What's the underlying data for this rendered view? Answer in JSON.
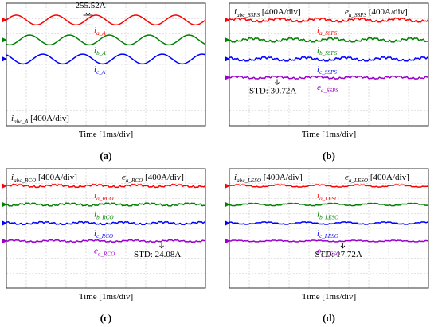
{
  "chart_data": [
    {
      "id": "a",
      "type": "line",
      "panel_label": "(a)",
      "xlabel": "Time [1ms/div]",
      "scale_label": {
        "main": "i",
        "sub": "abc_A",
        "tail": " [400A/div]"
      },
      "annotations": [
        {
          "text": "255.52A",
          "series": 0,
          "x_div": 4.1
        }
      ],
      "x_divs": 10,
      "y_divs": 8,
      "series": [
        {
          "name_main": "i",
          "name_sub": "a_A",
          "color": "#ff0000",
          "center_div": 1.1,
          "amp_div": 0.32,
          "cycles": 5.0,
          "phase": 0.0,
          "ripple": 0.0
        },
        {
          "name_main": "i",
          "name_sub": "b_A",
          "color": "#008000",
          "center_div": 2.4,
          "amp_div": 0.32,
          "cycles": 5.0,
          "phase": -2.094,
          "ripple": 0.0
        },
        {
          "name_main": "i",
          "name_sub": "c_A",
          "color": "#0000ff",
          "center_div": 3.65,
          "amp_div": 0.32,
          "cycles": 5.0,
          "phase": 2.094,
          "ripple": 0.0
        }
      ]
    },
    {
      "id": "b",
      "type": "line",
      "panel_label": "(b)",
      "xlabel": "Time [1ms/div]",
      "scale_label": {
        "main": "i",
        "sub": "abc_SSPS",
        "tail": " [400A/div]"
      },
      "scale_label_right": {
        "main": "e",
        "sub": "a_SSPS",
        "tail": " [400A/div]"
      },
      "annotations": [
        {
          "text": "STD: 30.72A",
          "series": 3,
          "x_div": 2.4
        }
      ],
      "x_divs": 10,
      "y_divs": 8,
      "series": [
        {
          "name_main": "i",
          "name_sub": "a_SSPS",
          "color": "#ff0000",
          "center_div": 1.1,
          "amp_div": 0.1,
          "cycles": 5.0,
          "phase": 0.0,
          "ripple": 0.05
        },
        {
          "name_main": "i",
          "name_sub": "b_SSPS",
          "color": "#008000",
          "center_div": 2.4,
          "amp_div": 0.1,
          "cycles": 5.0,
          "phase": -2.094,
          "ripple": 0.05
        },
        {
          "name_main": "i",
          "name_sub": "c_SSPS",
          "color": "#0000ff",
          "center_div": 3.65,
          "amp_div": 0.1,
          "cycles": 5.0,
          "phase": 2.094,
          "ripple": 0.05
        },
        {
          "name_main": "e",
          "name_sub": "a_SSPS",
          "color": "#9900cc",
          "center_div": 4.85,
          "amp_div": 0.06,
          "cycles": 5.0,
          "phase": 0.5,
          "ripple": 0.04
        }
      ]
    },
    {
      "id": "c",
      "type": "line",
      "panel_label": "(c)",
      "xlabel": "Time [1ms/div]",
      "scale_label": {
        "main": "i",
        "sub": "abc_RCO",
        "tail": " [400A/div]"
      },
      "scale_label_right": {
        "main": "e",
        "sub": "a_RCO",
        "tail": " [400A/div]"
      },
      "annotations": [
        {
          "text": "STD: 24.08A",
          "series": 3,
          "x_div": 7.8
        }
      ],
      "x_divs": 10,
      "y_divs": 8,
      "series": [
        {
          "name_main": "i",
          "name_sub": "a_RCO",
          "color": "#ff0000",
          "center_div": 1.15,
          "amp_div": 0.07,
          "cycles": 5.0,
          "phase": 0.0,
          "ripple": 0.04
        },
        {
          "name_main": "i",
          "name_sub": "b_RCO",
          "color": "#008000",
          "center_div": 2.4,
          "amp_div": 0.07,
          "cycles": 5.0,
          "phase": -2.094,
          "ripple": 0.04
        },
        {
          "name_main": "i",
          "name_sub": "c_RCO",
          "color": "#0000ff",
          "center_div": 3.65,
          "amp_div": 0.07,
          "cycles": 5.0,
          "phase": 2.094,
          "ripple": 0.04
        },
        {
          "name_main": "e",
          "name_sub": "a_RCO",
          "color": "#9900cc",
          "center_div": 4.85,
          "amp_div": 0.05,
          "cycles": 5.0,
          "phase": 0.5,
          "ripple": 0.03
        }
      ]
    },
    {
      "id": "d",
      "type": "line",
      "panel_label": "(d)",
      "xlabel": "Time [1ms/div]",
      "scale_label": {
        "main": "i",
        "sub": "abc_LESO",
        "tail": " [400A/div]"
      },
      "scale_label_right": {
        "main": "e",
        "sub": "a_LESO",
        "tail": " [400A/div]"
      },
      "annotations": [
        {
          "text": "STD: 17.72A",
          "series": 3,
          "x_div": 5.7
        }
      ],
      "x_divs": 10,
      "y_divs": 8,
      "series": [
        {
          "name_main": "i",
          "name_sub": "a_LESO",
          "color": "#ff0000",
          "center_div": 1.15,
          "amp_div": 0.07,
          "cycles": 5.0,
          "phase": 0.0,
          "ripple": 0.02
        },
        {
          "name_main": "i",
          "name_sub": "b_LESO",
          "color": "#008000",
          "center_div": 2.4,
          "amp_div": 0.07,
          "cycles": 5.0,
          "phase": -2.094,
          "ripple": 0.02
        },
        {
          "name_main": "i",
          "name_sub": "c_LESO",
          "color": "#0000ff",
          "center_div": 3.65,
          "amp_div": 0.07,
          "cycles": 5.0,
          "phase": 2.094,
          "ripple": 0.02
        },
        {
          "name_main": "e",
          "name_sub": "a_LESO",
          "color": "#9900cc",
          "center_div": 4.85,
          "amp_div": 0.04,
          "cycles": 5.0,
          "phase": 0.5,
          "ripple": 0.02
        }
      ]
    }
  ],
  "colors": {
    "grid": "#c8c8c8",
    "frame": "#333333",
    "text": "#000000"
  }
}
